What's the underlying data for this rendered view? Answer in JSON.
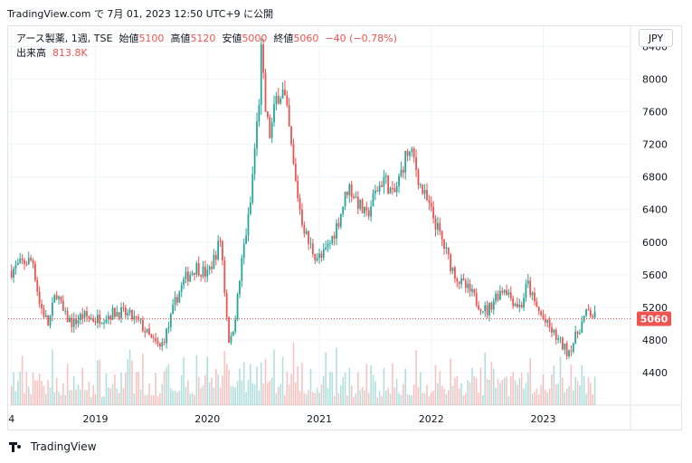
{
  "header": {
    "text": "TradingView.com で 7月 01, 2023 12:50 UTC+9 に公開"
  },
  "legend": {
    "symbol": "アース製薬, 1週, TSE",
    "open_label": "始値",
    "open": "5100",
    "high_label": "高値",
    "high": "5120",
    "low_label": "安値",
    "low": "5000",
    "close_label": "終値",
    "close": "5060",
    "change": "−40 (−0.78%)",
    "volume_label": "出来高",
    "volume": "813.8K"
  },
  "currency": "JPY",
  "footer": {
    "brand": "TradingView"
  },
  "colors": {
    "up": "#26a69a",
    "down": "#ef5350",
    "grid": "#f0f3fa",
    "price_line": "#ef5350"
  },
  "chart_data": {
    "type": "candlestick",
    "title": "アース製薬, 1週, TSE",
    "xlabel": "",
    "ylabel": "",
    "y_ticks": [
      4400,
      4800,
      5200,
      5600,
      6000,
      6400,
      6800,
      7200,
      7600,
      8000,
      8400
    ],
    "y_range": [
      4000,
      8650
    ],
    "x_ticks": [
      {
        "label": "4",
        "t": 2018.25
      },
      {
        "label": "2019",
        "t": 2019.0
      },
      {
        "label": "2020",
        "t": 2020.0
      },
      {
        "label": "2021",
        "t": 2021.0
      },
      {
        "label": "2022",
        "t": 2022.0
      },
      {
        "label": "2023",
        "t": 2023.0
      }
    ],
    "x_range": [
      2018.22,
      2023.78
    ],
    "last_price": 5060,
    "last_price_label": "5060",
    "grid": true,
    "price_path": [
      {
        "t": 2018.25,
        "p": 5650
      },
      {
        "t": 2018.35,
        "p": 5750
      },
      {
        "t": 2018.44,
        "p": 5780
      },
      {
        "t": 2018.5,
        "p": 5250
      },
      {
        "t": 2018.58,
        "p": 4980
      },
      {
        "t": 2018.65,
        "p": 5400
      },
      {
        "t": 2018.72,
        "p": 5100
      },
      {
        "t": 2018.8,
        "p": 5000
      },
      {
        "t": 2018.88,
        "p": 5100
      },
      {
        "t": 2019.0,
        "p": 5050
      },
      {
        "t": 2019.1,
        "p": 5100
      },
      {
        "t": 2019.2,
        "p": 5150
      },
      {
        "t": 2019.3,
        "p": 5100
      },
      {
        "t": 2019.4,
        "p": 5000
      },
      {
        "t": 2019.5,
        "p": 4800
      },
      {
        "t": 2019.58,
        "p": 4700
      },
      {
        "t": 2019.65,
        "p": 4950
      },
      {
        "t": 2019.72,
        "p": 5300
      },
      {
        "t": 2019.8,
        "p": 5550
      },
      {
        "t": 2019.9,
        "p": 5700
      },
      {
        "t": 2020.0,
        "p": 5600
      },
      {
        "t": 2020.06,
        "p": 5800
      },
      {
        "t": 2020.12,
        "p": 6050
      },
      {
        "t": 2020.16,
        "p": 5300
      },
      {
        "t": 2020.2,
        "p": 4700
      },
      {
        "t": 2020.26,
        "p": 5200
      },
      {
        "t": 2020.32,
        "p": 5900
      },
      {
        "t": 2020.38,
        "p": 6400
      },
      {
        "t": 2020.42,
        "p": 7100
      },
      {
        "t": 2020.46,
        "p": 7700
      },
      {
        "t": 2020.48,
        "p": 8350
      },
      {
        "t": 2020.52,
        "p": 7600
      },
      {
        "t": 2020.56,
        "p": 7300
      },
      {
        "t": 2020.62,
        "p": 7800
      },
      {
        "t": 2020.68,
        "p": 7850
      },
      {
        "t": 2020.72,
        "p": 7500
      },
      {
        "t": 2020.78,
        "p": 6800
      },
      {
        "t": 2020.84,
        "p": 6300
      },
      {
        "t": 2020.9,
        "p": 6000
      },
      {
        "t": 2020.96,
        "p": 5850
      },
      {
        "t": 2021.02,
        "p": 5800
      },
      {
        "t": 2021.1,
        "p": 6000
      },
      {
        "t": 2021.18,
        "p": 6300
      },
      {
        "t": 2021.26,
        "p": 6700
      },
      {
        "t": 2021.34,
        "p": 6500
      },
      {
        "t": 2021.42,
        "p": 6300
      },
      {
        "t": 2021.5,
        "p": 6600
      },
      {
        "t": 2021.58,
        "p": 6800
      },
      {
        "t": 2021.66,
        "p": 6550
      },
      {
        "t": 2021.72,
        "p": 6800
      },
      {
        "t": 2021.78,
        "p": 7100
      },
      {
        "t": 2021.84,
        "p": 7050
      },
      {
        "t": 2021.9,
        "p": 6700
      },
      {
        "t": 2021.96,
        "p": 6500
      },
      {
        "t": 2022.02,
        "p": 6300
      },
      {
        "t": 2022.1,
        "p": 6000
      },
      {
        "t": 2022.18,
        "p": 5700
      },
      {
        "t": 2022.26,
        "p": 5500
      },
      {
        "t": 2022.34,
        "p": 5400
      },
      {
        "t": 2022.42,
        "p": 5250
      },
      {
        "t": 2022.5,
        "p": 5150
      },
      {
        "t": 2022.58,
        "p": 5350
      },
      {
        "t": 2022.66,
        "p": 5450
      },
      {
        "t": 2022.72,
        "p": 5300
      },
      {
        "t": 2022.8,
        "p": 5200
      },
      {
        "t": 2022.86,
        "p": 5500
      },
      {
        "t": 2022.92,
        "p": 5250
      },
      {
        "t": 2023.0,
        "p": 5050
      },
      {
        "t": 2023.08,
        "p": 4900
      },
      {
        "t": 2023.16,
        "p": 4750
      },
      {
        "t": 2023.22,
        "p": 4650
      },
      {
        "t": 2023.28,
        "p": 4800
      },
      {
        "t": 2023.34,
        "p": 5000
      },
      {
        "t": 2023.4,
        "p": 5150
      },
      {
        "t": 2023.44,
        "p": 5100
      },
      {
        "t": 2023.48,
        "p": 5060
      }
    ]
  }
}
